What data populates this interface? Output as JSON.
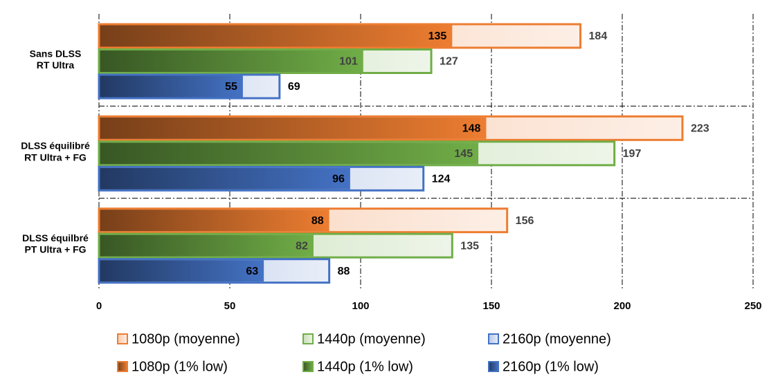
{
  "chart_data": {
    "type": "bar",
    "orientation": "horizontal",
    "categories": [
      "Sans DLSS\nRT Ultra",
      "DLSS équilibré\nRT Ultra + FG",
      "DLSS équilbré\nPT Ultra + FG"
    ],
    "series": [
      {
        "name": "1080p (moyenne)",
        "color": "#ed7d31",
        "values": [
          184,
          223,
          156
        ]
      },
      {
        "name": "1440p (moyenne)",
        "color": "#70ad47",
        "values": [
          127,
          197,
          135
        ]
      },
      {
        "name": "2160p (moyenne)",
        "color": "#4472c4",
        "values": [
          69,
          124,
          88
        ]
      },
      {
        "name": "1080p (1% low)",
        "color": "#ed7d31",
        "values": [
          135,
          148,
          88
        ]
      },
      {
        "name": "1440p (1% low)",
        "color": "#70ad47",
        "values": [
          101,
          145,
          82
        ]
      },
      {
        "name": "2160p (1% low)",
        "color": "#4472c4",
        "values": [
          55,
          96,
          63
        ]
      }
    ],
    "xlim": [
      0,
      250
    ],
    "xticks": [
      0,
      50,
      100,
      150,
      200,
      250
    ],
    "grid": true,
    "legend": "bottom"
  }
}
